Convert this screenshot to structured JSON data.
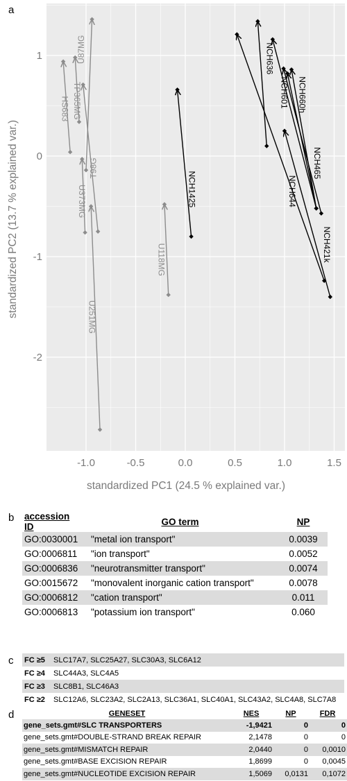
{
  "panels": {
    "a": "a",
    "b": "b",
    "c": "c",
    "d": "d"
  },
  "chart_data": {
    "type": "scatter",
    "xlabel": "standardized PC1 (24.5 % explained var.)",
    "ylabel": "standardized PC2 (13.7 % explained var.)",
    "xlim": [
      -1.4,
      1.55
    ],
    "ylim": [
      -2.8,
      1.4
    ],
    "xticks": [
      "-1.0",
      "-0.5",
      "0.0",
      "0.5",
      "1.0",
      "1.5"
    ],
    "yticks": [
      "-2",
      "-1",
      "0",
      "1"
    ],
    "colors": {
      "gray_series": "#8c8c8c",
      "black_series": "#000000",
      "panel_bg": "#ebebeb",
      "grid": "#ffffff"
    },
    "series": [
      {
        "name": "HS683",
        "group": "gray",
        "from": [
          -1.16,
          0.04
        ],
        "to": [
          -1.23,
          0.94
        ]
      },
      {
        "name": "TP365MG",
        "group": "gray",
        "from": [
          -1.07,
          0.34
        ],
        "to": [
          -1.11,
          0.98
        ]
      },
      {
        "name": "U87MG",
        "group": "gray",
        "from": [
          -1.0,
          -0.14
        ],
        "to": [
          -0.94,
          1.36
        ]
      },
      {
        "name": "T98G",
        "group": "gray",
        "from": [
          -0.88,
          -0.75
        ],
        "to": [
          -1.03,
          0.71
        ]
      },
      {
        "name": "U373MG",
        "group": "gray",
        "from": [
          -1.01,
          -0.76
        ],
        "to": [
          -1.04,
          -0.03
        ]
      },
      {
        "name": "U251MG",
        "group": "gray",
        "from": [
          -0.86,
          -2.72
        ],
        "to": [
          -0.95,
          -0.5
        ]
      },
      {
        "name": "U118MG",
        "group": "gray",
        "from": [
          -0.17,
          -1.38
        ],
        "to": [
          -0.21,
          -0.48
        ]
      },
      {
        "name": "NCH1425",
        "group": "black",
        "from": [
          0.06,
          -0.8
        ],
        "to": [
          -0.08,
          0.66
        ]
      },
      {
        "name": "NCH636",
        "group": "black",
        "from": [
          0.82,
          0.1
        ],
        "to": [
          0.73,
          1.34
        ]
      },
      {
        "name": "NCH601",
        "group": "black",
        "from": [
          1.37,
          -0.57
        ],
        "to": [
          0.99,
          0.87
        ]
      },
      {
        "name": "NCH660h",
        "group": "black",
        "from": [
          1.32,
          -0.52
        ],
        "to": [
          1.07,
          0.86
        ]
      },
      {
        "name": "NCH465",
        "group": "black",
        "from": [
          1.32,
          -0.52
        ],
        "to": [
          0.88,
          1.16
        ]
      },
      {
        "name": "NCH644",
        "group": "black",
        "from": [
          1.4,
          -1.24
        ],
        "to": [
          0.52,
          1.21
        ]
      },
      {
        "name": "NCH421k",
        "group": "black",
        "from": [
          1.46,
          -1.4
        ],
        "to": [
          1.0,
          0.25
        ]
      },
      {
        "name": "",
        "group": "black",
        "from": [
          1.32,
          -0.52
        ],
        "to": [
          1.03,
          0.82
        ]
      }
    ],
    "labels": [
      {
        "text": "HS683",
        "group": "gray",
        "at": [
          -1.24,
          0.47
        ]
      },
      {
        "text": "TP365MG",
        "group": "gray",
        "at": [
          -1.12,
          0.55
        ]
      },
      {
        "text": "U87MG",
        "group": "gray",
        "at": [
          -1.02,
          1.06
        ]
      },
      {
        "text": "T98G",
        "group": "gray",
        "at": [
          -0.9,
          -0.12
        ]
      },
      {
        "text": "U373MG",
        "group": "gray",
        "at": [
          -1.07,
          -0.45
        ]
      },
      {
        "text": "U251MG",
        "group": "gray",
        "at": [
          -0.97,
          -1.6
        ]
      },
      {
        "text": "U118MG",
        "group": "gray",
        "at": [
          -0.27,
          -1.03
        ]
      },
      {
        "text": "NCH1425",
        "group": "black",
        "at": [
          0.04,
          -0.33
        ]
      },
      {
        "text": "NCH636",
        "group": "black",
        "at": [
          0.82,
          0.97
        ]
      },
      {
        "text": "NCH601",
        "group": "black",
        "at": [
          0.97,
          0.63
        ]
      },
      {
        "text": "NCH660h",
        "group": "black",
        "at": [
          1.15,
          0.61
        ]
      },
      {
        "text": "NCH465",
        "group": "black",
        "at": [
          1.3,
          -0.07
        ]
      },
      {
        "text": "NCH644",
        "group": "black",
        "at": [
          1.05,
          -0.35
        ]
      },
      {
        "text": "NCH421k",
        "group": "black",
        "at": [
          1.4,
          -0.88
        ]
      }
    ]
  },
  "table_b": {
    "headers": [
      "accession ID",
      "GO term",
      "NP"
    ],
    "rows": [
      [
        "GO:0030001",
        "\"metal ion transport\"",
        "0.0039"
      ],
      [
        "GO:0006811",
        "\"ion transport\"",
        "0.0052"
      ],
      [
        "GO:0006836",
        "\"neurotransmitter transport\"",
        "0.0074"
      ],
      [
        "GO:0015672",
        "\"monovalent inorganic cation transport\"",
        "0.0078"
      ],
      [
        "GO:0006812",
        "\"cation transport\"",
        "0.011"
      ],
      [
        "GO:0006813",
        "\"potassium ion transport\"",
        "0.060"
      ]
    ]
  },
  "table_c": {
    "rows": [
      [
        "FC ≥5",
        "SLC17A7, SLC25A27, SLC30A3, SLC6A12"
      ],
      [
        "FC ≥4",
        "SLC44A3, SLC4A5"
      ],
      [
        "FC ≥3",
        "SLC8B1, SLC46A3"
      ],
      [
        "FC ≥2",
        "SLC12A6, SLC23A2, SLC2A13, SLC36A1, SLC40A1, SLC43A2, SLC4A8, SLC7A8"
      ]
    ]
  },
  "table_d": {
    "headers": [
      "GENESET",
      "NES",
      "NP",
      "FDR"
    ],
    "rows": [
      [
        "gene_sets.gmt#SLC TRANSPORTERS",
        "-1,9421",
        "0",
        "0"
      ],
      [
        "gene_sets.gmt#DOUBLE-STRAND BREAK REPAIR",
        "2,1478",
        "0",
        "0"
      ],
      [
        "gene_sets.gmt#MISMATCH REPAIR",
        "2,0440",
        "0",
        "0,0010"
      ],
      [
        "gene_sets.gmt#BASE EXCISION REPAIR",
        "1,8699",
        "0",
        "0,0045"
      ],
      [
        "gene_sets.gmt#NUCLEOTIDE EXCISION REPAIR",
        "1,5069",
        "0,0131",
        "0,1072"
      ]
    ]
  }
}
